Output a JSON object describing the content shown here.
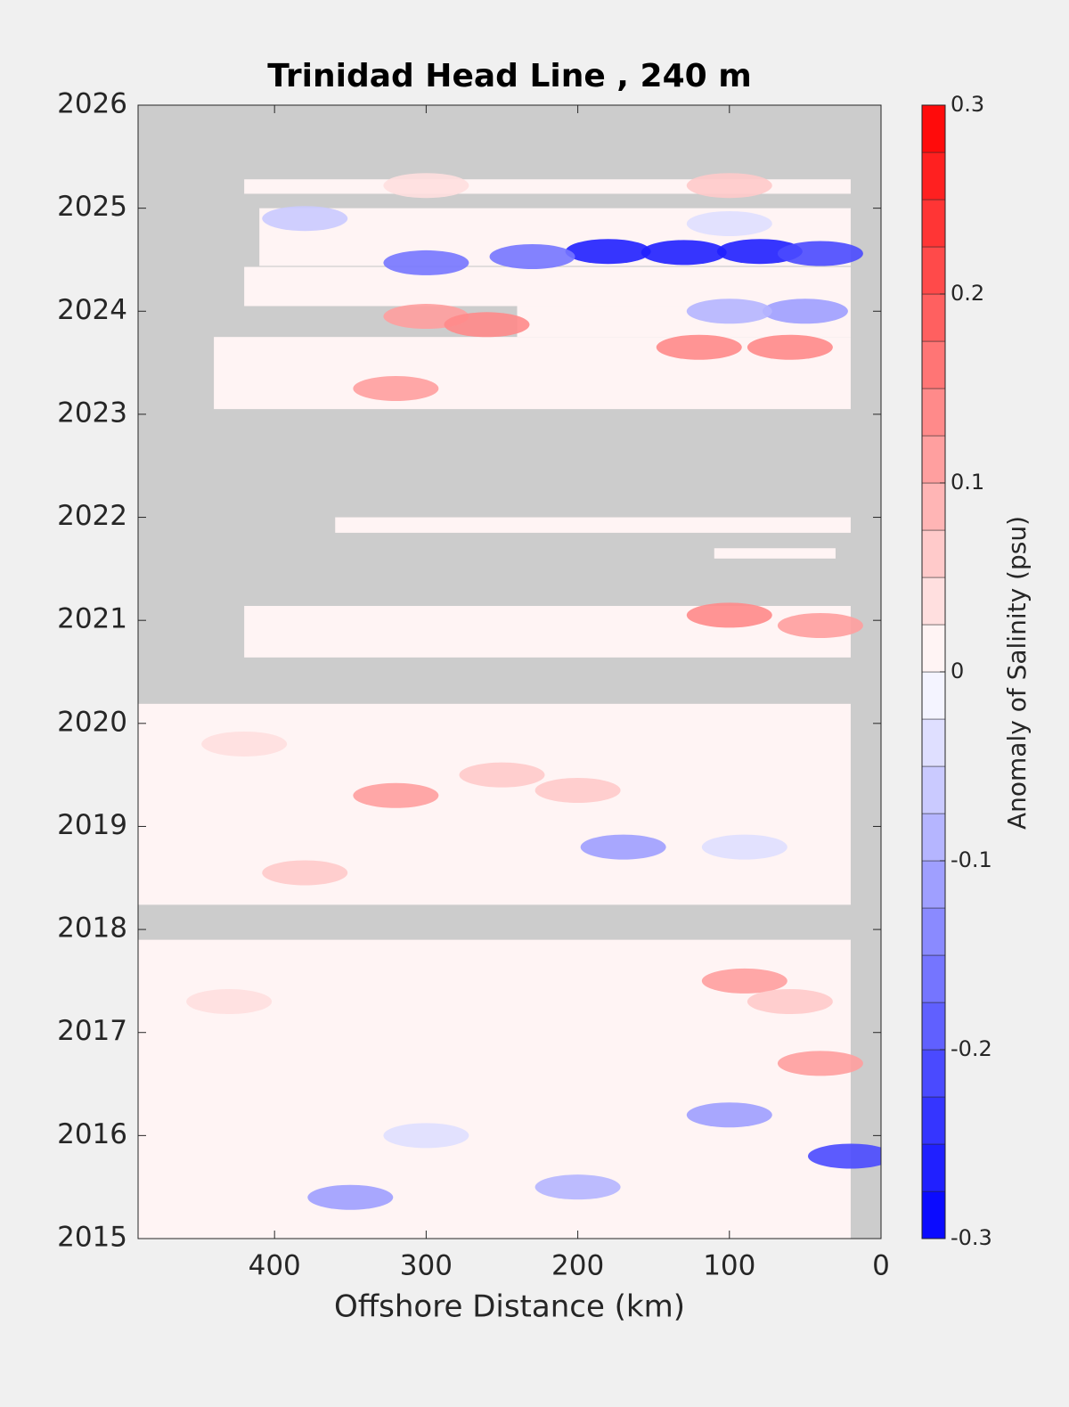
{
  "chart_data": {
    "type": "contour",
    "title": "Trinidad Head Line , 240 m",
    "xlabel": "Offshore Distance (km)",
    "xlim": [
      490,
      0
    ],
    "xticks": [
      400,
      300,
      200,
      100,
      0
    ],
    "ylim": [
      2015,
      2026
    ],
    "yticks": [
      2015,
      2016,
      2017,
      2018,
      2019,
      2020,
      2021,
      2022,
      2023,
      2024,
      2025,
      2026
    ],
    "colorbar_label": "Anomaly of Salinity (psu)",
    "clim": [
      -0.3,
      0.3
    ],
    "level_step": 0.025,
    "cticks": [
      -0.3,
      -0.2,
      -0.1,
      0,
      0.1,
      0.2,
      0.3
    ],
    "color_low": "#0000ff",
    "color_mid": "#ffffff",
    "color_high": "#ff0000",
    "nodata_color": "#cccccc",
    "data_coverage": [
      {
        "x": [
          420,
          20
        ],
        "y": [
          2025.14,
          2025.28
        ]
      },
      {
        "x": [
          410,
          20
        ],
        "y": [
          2024.44,
          2025.0
        ]
      },
      {
        "x": [
          420,
          20
        ],
        "y": [
          2024.05,
          2024.43
        ]
      },
      {
        "x": [
          240,
          20
        ],
        "y": [
          2023.75,
          2024.05
        ]
      },
      {
        "x": [
          440,
          20
        ],
        "y": [
          2023.05,
          2023.75
        ]
      },
      {
        "x": [
          360,
          20
        ],
        "y": [
          2021.85,
          2022.0
        ]
      },
      {
        "x": [
          110,
          30
        ],
        "y": [
          2021.6,
          2021.7
        ]
      },
      {
        "x": [
          420,
          20
        ],
        "y": [
          2020.64,
          2021.14
        ]
      },
      {
        "x": [
          490,
          20
        ],
        "y": [
          2018.24,
          2020.19
        ]
      },
      {
        "x": [
          490,
          20
        ],
        "y": [
          2015.0,
          2017.9
        ]
      }
    ],
    "anomaly_patches": [
      {
        "x": 180,
        "y": 2024.58,
        "value": -0.25
      },
      {
        "x": 130,
        "y": 2024.57,
        "value": -0.25
      },
      {
        "x": 80,
        "y": 2024.58,
        "value": -0.25
      },
      {
        "x": 40,
        "y": 2024.56,
        "value": -0.22
      },
      {
        "x": 230,
        "y": 2024.53,
        "value": -0.15
      },
      {
        "x": 300,
        "y": 2024.47,
        "value": -0.15
      },
      {
        "x": 300,
        "y": 2023.95,
        "value": 0.12
      },
      {
        "x": 260,
        "y": 2023.87,
        "value": 0.15
      },
      {
        "x": 120,
        "y": 2023.65,
        "value": 0.15
      },
      {
        "x": 60,
        "y": 2023.65,
        "value": 0.15
      },
      {
        "x": 50,
        "y": 2024.0,
        "value": -0.1
      },
      {
        "x": 100,
        "y": 2024.0,
        "value": -0.075
      },
      {
        "x": 320,
        "y": 2023.25,
        "value": 0.1
      },
      {
        "x": 100,
        "y": 2021.05,
        "value": 0.15
      },
      {
        "x": 40,
        "y": 2020.95,
        "value": 0.1
      },
      {
        "x": 320,
        "y": 2019.3,
        "value": 0.12
      },
      {
        "x": 200,
        "y": 2019.35,
        "value": 0.07
      },
      {
        "x": 170,
        "y": 2018.8,
        "value": -0.1
      },
      {
        "x": 90,
        "y": 2018.8,
        "value": -0.05
      },
      {
        "x": 90,
        "y": 2017.5,
        "value": 0.12
      },
      {
        "x": 60,
        "y": 2017.3,
        "value": 0.07
      },
      {
        "x": 40,
        "y": 2016.7,
        "value": 0.1
      },
      {
        "x": 100,
        "y": 2016.2,
        "value": -0.12
      },
      {
        "x": 20,
        "y": 2015.8,
        "value": -0.2
      },
      {
        "x": 350,
        "y": 2015.4,
        "value": -0.1
      },
      {
        "x": 200,
        "y": 2015.5,
        "value": -0.08
      },
      {
        "x": 300,
        "y": 2016.0,
        "value": -0.05
      },
      {
        "x": 380,
        "y": 2018.55,
        "value": 0.07
      },
      {
        "x": 430,
        "y": 2017.3,
        "value": 0.05
      },
      {
        "x": 300,
        "y": 2025.22,
        "value": 0.05
      },
      {
        "x": 100,
        "y": 2025.22,
        "value": 0.07
      },
      {
        "x": 380,
        "y": 2024.9,
        "value": -0.07
      },
      {
        "x": 100,
        "y": 2024.85,
        "value": -0.05
      },
      {
        "x": 420,
        "y": 2019.8,
        "value": 0.05
      },
      {
        "x": 250,
        "y": 2019.5,
        "value": 0.07
      }
    ]
  }
}
